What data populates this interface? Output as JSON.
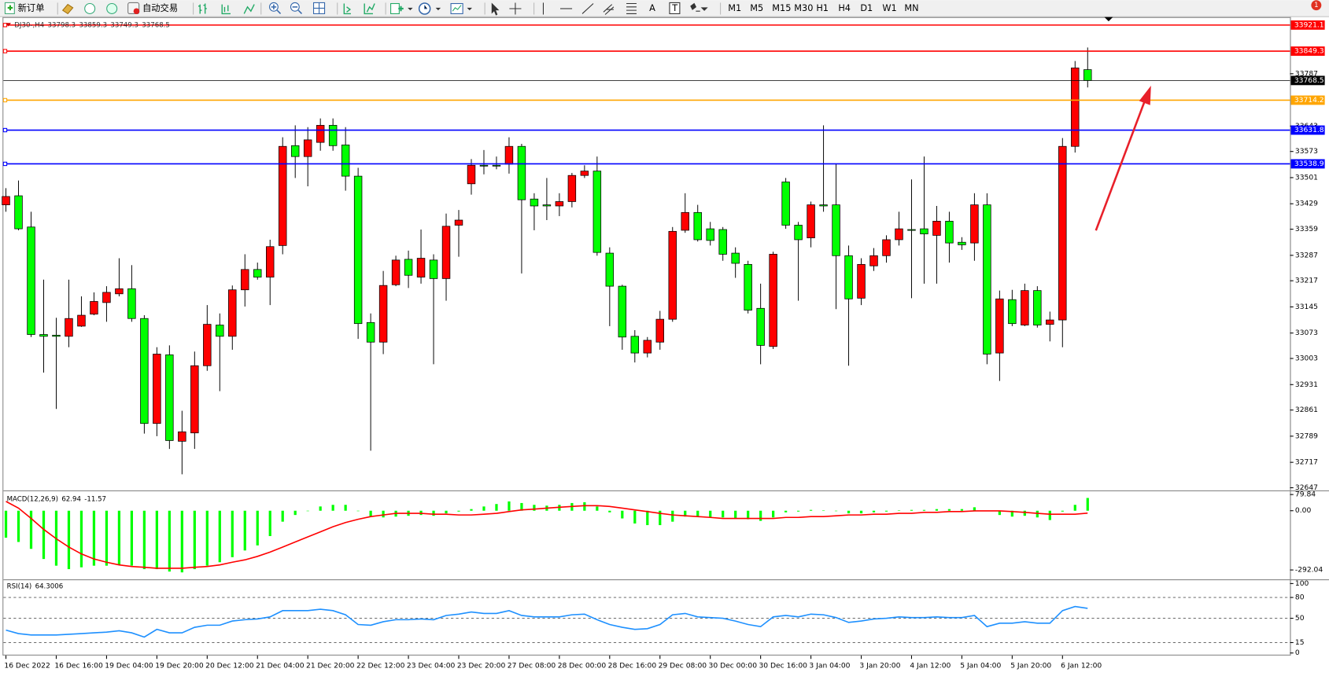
{
  "toolbar": {
    "new_order": "新订单",
    "auto_trading": "自动交易",
    "text_tool": "A",
    "label_tool": "T",
    "timeframes": [
      "M1",
      "M5",
      "M15",
      "M30",
      "H1",
      "H4",
      "D1",
      "W1",
      "MN"
    ],
    "notification": "1"
  },
  "chart_data": [
    {
      "type": "candlestick",
      "symbol": "DJ30-,H4",
      "categories": [
        "16 Dec 2022",
        null,
        null,
        null,
        "16 Dec 16:00",
        null,
        null,
        null,
        "19 Dec 04:00",
        null,
        null,
        null,
        "19 Dec 20:00",
        null,
        null,
        null,
        "20 Dec 12:00",
        null,
        null,
        null,
        "21 Dec 04:00",
        null,
        null,
        null,
        "21 Dec 20:00",
        null,
        null,
        null,
        "22 Dec 12:00",
        null,
        null,
        null,
        "23 Dec 04:00",
        null,
        null,
        null,
        "23 Dec 20:00",
        null,
        null,
        null,
        "27 Dec 08:00",
        null,
        null,
        null,
        "28 Dec 00:00",
        null,
        null,
        null,
        "28 Dec 16:00",
        null,
        null,
        null,
        "29 Dec 08:00",
        null,
        null,
        null,
        "30 Dec 00:00",
        null,
        null,
        null,
        "30 Dec 16:00",
        null,
        null,
        null,
        "3 Jan 04:00",
        null,
        null,
        null,
        "3 Jan 20:00",
        null,
        null,
        null,
        "4 Jan 12:00",
        null,
        null,
        null,
        "5 Jan 04:00",
        null,
        null,
        null,
        "5 Jan 20:00",
        null,
        null,
        null,
        "6 Jan 12:00",
        null,
        null
      ],
      "open": [
        33426,
        33451,
        33365,
        33069,
        33067,
        33064,
        33092,
        33125,
        33157,
        33181,
        33195,
        33113,
        32824,
        33013,
        32775,
        32798,
        32983,
        33095,
        33064,
        33192,
        33248,
        33227,
        33314,
        33589,
        33559,
        33598,
        33645,
        33591,
        33505,
        33102,
        33048,
        33206,
        33276,
        33227,
        33274,
        33223,
        33370,
        33484,
        33535,
        33535,
        33538,
        33587,
        33442,
        33426,
        33423,
        33435,
        33507,
        33519,
        33293,
        33202,
        33064,
        33018,
        33048,
        33111,
        33356,
        33405,
        33360,
        33358,
        33293,
        33262,
        33141,
        33036,
        33489,
        33370,
        33335,
        33426,
        33426,
        33286,
        33169,
        33258,
        33286,
        33330,
        33358,
        33360,
        33342,
        33381,
        33323,
        33321,
        33426,
        33018,
        33165,
        33095,
        33190,
        33097,
        33109,
        33587,
        33798.3
      ],
      "high": [
        33472,
        33493,
        33407,
        33220,
        33115,
        33220,
        33174,
        33185,
        33202,
        33279,
        33260,
        33122,
        33034,
        33039,
        32859,
        33022,
        33150,
        33127,
        33204,
        33290,
        33267,
        33330,
        33612,
        33645,
        33640,
        33664,
        33664,
        33640,
        33528,
        33127,
        33244,
        33286,
        33300,
        33358,
        33290,
        33402,
        33412,
        33552,
        33577,
        33559,
        33612,
        33594,
        33458,
        33500,
        33458,
        33514,
        33535,
        33559,
        33309,
        33206,
        33081,
        33062,
        33134,
        33365,
        33458,
        33426,
        33379,
        33365,
        33309,
        33272,
        33209,
        33297,
        33500,
        33379,
        33435,
        33645,
        33540,
        33314,
        33279,
        33307,
        33342,
        33407,
        33496,
        33559,
        33423,
        33407,
        33337,
        33458,
        33458,
        33190,
        33192,
        33209,
        33202,
        33132,
        33610,
        33822,
        33859.3
      ],
      "low": [
        33407,
        33356,
        33062,
        32964,
        32864,
        33034,
        33090,
        33122,
        33104,
        33174,
        33104,
        32796,
        32789,
        32754,
        32684,
        32754,
        32969,
        32913,
        33027,
        33146,
        33220,
        33150,
        33290,
        33500,
        33477,
        33575,
        33575,
        33465,
        33057,
        32749,
        33015,
        33202,
        33197,
        33209,
        32987,
        33162,
        33283,
        33454,
        33510,
        33524,
        33512,
        33237,
        33356,
        33384,
        33395,
        33419,
        33500,
        33286,
        33092,
        33027,
        32992,
        33006,
        33027,
        33104,
        33349,
        33325,
        33314,
        33272,
        33225,
        33127,
        32987,
        33029,
        33360,
        33162,
        33309,
        33407,
        33139,
        32983,
        33150,
        33244,
        33267,
        33314,
        33169,
        33209,
        33209,
        33267,
        33302,
        33272,
        32987,
        32941,
        33092,
        33092,
        33088,
        33050,
        33034,
        33570,
        33749.3
      ],
      "close": [
        33449,
        33360,
        33069,
        33064,
        33064,
        33113,
        33122,
        33160,
        33185,
        33195,
        33113,
        32824,
        33015,
        32777,
        32801,
        32983,
        33097,
        33064,
        33192,
        33248,
        33227,
        33311,
        33587,
        33559,
        33605,
        33645,
        33589,
        33505,
        33099,
        33048,
        33204,
        33274,
        33232,
        33279,
        33223,
        33367,
        33384,
        33535,
        33533,
        33533,
        33587,
        33440,
        33423,
        33423,
        33435,
        33507,
        33519,
        33295,
        33202,
        33062,
        33018,
        33053,
        33111,
        33353,
        33405,
        33330,
        33328,
        33290,
        33265,
        33136,
        33039,
        33290,
        33370,
        33330,
        33426,
        33423,
        33286,
        33167,
        33262,
        33286,
        33330,
        33360,
        33356,
        33346,
        33381,
        33321,
        33316,
        33426,
        33015,
        33167,
        33099,
        33190,
        33095,
        33109,
        33587,
        33803,
        33768.5
      ],
      "up_color": "#ff0000",
      "down_color": "#00ff00",
      "ylim": [
        32642,
        33943
      ],
      "yticks": [
        33787,
        33643,
        33573,
        33501,
        33429,
        33359,
        33287,
        33217,
        33145,
        33073,
        33003,
        32931,
        32861,
        32789,
        32717,
        32647
      ],
      "hlines": [
        {
          "value": 33921.1,
          "color": "#ff0000"
        },
        {
          "value": 33849.3,
          "color": "#ff0000"
        },
        {
          "value": 33714.2,
          "color": "#ffa500"
        },
        {
          "value": 33631.8,
          "color": "#0000ff"
        },
        {
          "value": 33538.9,
          "color": "#0000ff"
        }
      ],
      "price_line_color": "#000000"
    },
    {
      "type": "macd",
      "title": "MACD(12,26,9)",
      "histogram": [
        -133,
        -154,
        -188,
        -238,
        -271,
        -288,
        -279,
        -271,
        -271,
        -267,
        -271,
        -288,
        -288,
        -300,
        -304,
        -288,
        -271,
        -254,
        -229,
        -196,
        -171,
        -125,
        -54,
        -21,
        -2,
        21,
        29,
        29,
        -2,
        -29,
        -33,
        -29,
        -25,
        -21,
        -25,
        -13,
        -4,
        8,
        21,
        33,
        46,
        38,
        29,
        25,
        29,
        38,
        42,
        21,
        -8,
        -38,
        -63,
        -71,
        -71,
        -54,
        -29,
        -29,
        -33,
        -33,
        -38,
        -42,
        -50,
        -33,
        -8,
        -4,
        4,
        1,
        -1,
        -13,
        -13,
        -8,
        -4,
        2,
        4,
        4,
        8,
        8,
        8,
        17,
        -2,
        -21,
        -29,
        -25,
        -33,
        -46,
        -4,
        29,
        62.94
      ],
      "signal": [
        46,
        13,
        -38,
        -92,
        -138,
        -179,
        -213,
        -238,
        -254,
        -267,
        -275,
        -279,
        -284,
        -284,
        -284,
        -279,
        -275,
        -267,
        -254,
        -242,
        -225,
        -204,
        -179,
        -154,
        -129,
        -104,
        -79,
        -58,
        -42,
        -29,
        -21,
        -13,
        -13,
        -13,
        -17,
        -17,
        -21,
        -21,
        -17,
        -13,
        -4,
        4,
        8,
        13,
        17,
        21,
        25,
        25,
        21,
        13,
        4,
        -4,
        -13,
        -21,
        -25,
        -29,
        -33,
        -38,
        -38,
        -38,
        -38,
        -38,
        -33,
        -33,
        -29,
        -29,
        -25,
        -21,
        -21,
        -17,
        -17,
        -13,
        -13,
        -8,
        -8,
        -4,
        -4,
        -1,
        -1,
        -1,
        -4,
        -8,
        -13,
        -17,
        -17,
        -17,
        -11.57
      ],
      "histogram_color": "#00ff00",
      "signal_color": "#ff0000",
      "ylim": [
        -334,
        96
      ],
      "yticks": [
        79.84,
        {
          "value": 0,
          "label": "0.00"
        },
        -292.04
      ]
    },
    {
      "type": "line",
      "title": "RSI(14)",
      "values": [
        33,
        28,
        26,
        26,
        26,
        27,
        28,
        29,
        30,
        32,
        29,
        23,
        34,
        29,
        29,
        37,
        40,
        40,
        46,
        48,
        49,
        52,
        61,
        61,
        61,
        63,
        61,
        55,
        41,
        40,
        45,
        48,
        48,
        49,
        48,
        54,
        56,
        59,
        57,
        57,
        61,
        54,
        52,
        52,
        52,
        55,
        56,
        48,
        41,
        37,
        34,
        35,
        41,
        55,
        57,
        52,
        51,
        50,
        46,
        41,
        38,
        52,
        54,
        52,
        56,
        55,
        51,
        44,
        46,
        49,
        50,
        52,
        51,
        51,
        52,
        51,
        51,
        54,
        38,
        43,
        43,
        45,
        43,
        43,
        61,
        67,
        64.3006
      ],
      "color": "#1e90ff",
      "ylim": [
        -2.4,
        104.9
      ],
      "yticks": [
        100,
        80,
        50,
        15,
        0
      ],
      "levels": [
        80,
        50,
        15
      ]
    }
  ]
}
